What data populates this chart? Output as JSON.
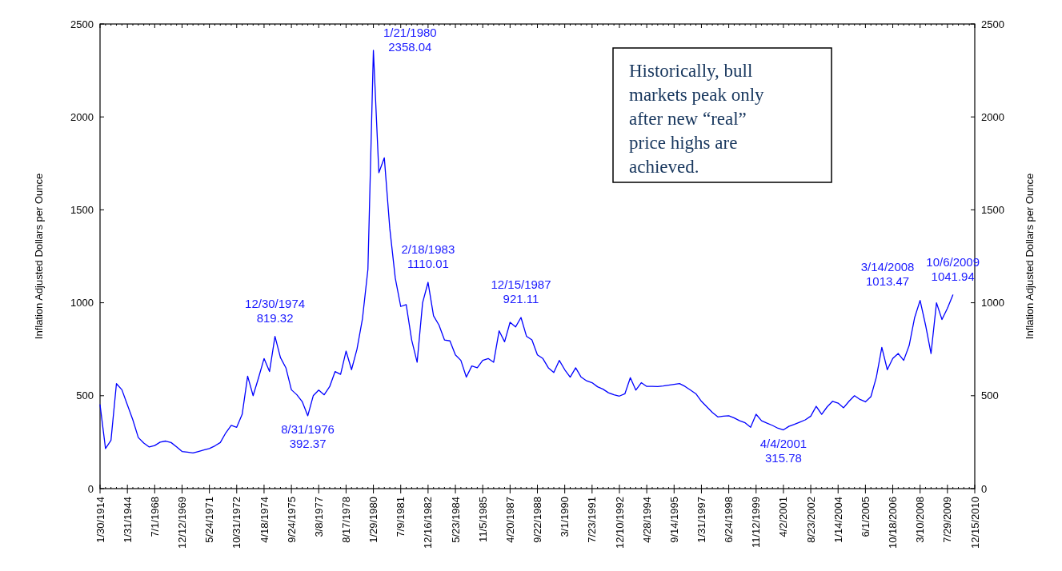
{
  "chart_data": {
    "type": "line",
    "ylabel": "Inflation Adjusted Dollars per Ounce",
    "y2label": "Inflation Adjusted Dollars per Ounce",
    "categories": [
      "1/30/1914",
      null,
      null,
      null,
      null,
      "1/31/1944",
      null,
      null,
      null,
      null,
      "7/1/1968",
      null,
      null,
      null,
      null,
      "12/12/1969",
      null,
      null,
      null,
      null,
      "5/24/1971",
      null,
      null,
      null,
      null,
      "10/31/1972",
      null,
      null,
      null,
      null,
      "4/18/1974",
      null,
      null,
      null,
      null,
      "9/24/1975",
      null,
      null,
      null,
      null,
      "3/8/1977",
      null,
      null,
      null,
      null,
      "8/17/1978",
      null,
      null,
      null,
      null,
      "1/29/1980",
      null,
      null,
      null,
      null,
      "7/9/1981",
      null,
      null,
      null,
      null,
      "12/16/1982",
      null,
      null,
      null,
      null,
      "5/23/1984",
      null,
      null,
      null,
      null,
      "11/5/1985",
      null,
      null,
      null,
      null,
      "4/20/1987",
      null,
      null,
      null,
      null,
      "9/22/1988",
      null,
      null,
      null,
      null,
      "3/1/1990",
      null,
      null,
      null,
      null,
      "7/23/1991",
      null,
      null,
      null,
      null,
      "12/10/1992",
      null,
      null,
      null,
      null,
      "4/28/1994",
      null,
      null,
      null,
      null,
      "9/14/1995",
      null,
      null,
      null,
      null,
      "1/31/1997",
      null,
      null,
      null,
      null,
      "6/24/1998",
      null,
      null,
      null,
      null,
      "11/12/1999",
      null,
      null,
      null,
      null,
      "4/2/2001",
      null,
      null,
      null,
      null,
      "8/23/2002",
      null,
      null,
      null,
      null,
      "1/14/2004",
      null,
      null,
      null,
      null,
      "6/1/2005",
      null,
      null,
      null,
      null,
      "10/18/2006",
      null,
      null,
      null,
      null,
      "3/10/2008",
      null,
      null,
      null,
      null,
      "7/29/2009",
      null,
      null,
      null,
      null,
      "12/15/2010"
    ],
    "ylim": [
      0,
      2500
    ],
    "yticks": [
      0,
      500,
      1000,
      1500,
      2000,
      2500
    ],
    "y2lim": [
      0,
      2500
    ],
    "y2ticks": [
      0,
      500,
      1000,
      1500,
      2000,
      2500
    ],
    "grid": false,
    "marker": "none",
    "line_style": "solid",
    "series": [
      {
        "color": "#0000ff",
        "values": [
          451,
          216,
          260,
          565,
          532,
          451,
          370,
          275,
          245,
          224,
          232,
          250,
          256,
          248,
          225,
          200,
          196,
          192,
          200,
          208,
          216,
          230,
          248,
          300,
          340,
          330,
          400,
          605,
          500,
          597,
          700,
          630,
          819,
          705,
          650,
          532,
          505,
          467,
          392,
          500,
          530,
          505,
          549,
          630,
          615,
          740,
          640,
          750,
          914,
          1180,
          2358,
          1700,
          1780,
          1400,
          1133,
          980,
          990,
          800,
          680,
          1000,
          1110,
          930,
          880,
          800,
          795,
          720,
          690,
          600,
          660,
          650,
          690,
          700,
          680,
          849,
          790,
          895,
          870,
          921,
          820,
          800,
          720,
          700,
          650,
          625,
          690,
          640,
          600,
          650,
          600,
          580,
          570,
          548,
          535,
          516,
          505,
          498,
          510,
          597,
          530,
          570,
          550,
          550,
          549,
          552,
          557,
          561,
          565,
          550,
          530,
          510,
          470,
          440,
          410,
          386,
          390,
          392,
          380,
          365,
          354,
          330,
          400,
          365,
          352,
          340,
          325,
          316,
          335,
          346,
          358,
          370,
          390,
          443,
          400,
          440,
          470,
          460,
          435,
          470,
          500,
          480,
          467,
          495,
          600,
          760,
          640,
          700,
          727,
          690,
          770,
          920,
          1013,
          880,
          727,
          1000,
          910,
          970,
          1042,
          null,
          null,
          null,
          null
        ]
      }
    ],
    "annotations": [
      "1/21/1980\n2358.04",
      "12/30/1974\n819.32",
      "8/31/1976\n392.37",
      "2/18/1983\n1110.01",
      "12/15/1987\n921.11",
      "4/4/2001\n315.78",
      "3/14/2008\n1013.47",
      "10/6/2009\n1041.94",
      "Historically, bull markets peak only after  new “real” price highs are achieved."
    ]
  }
}
